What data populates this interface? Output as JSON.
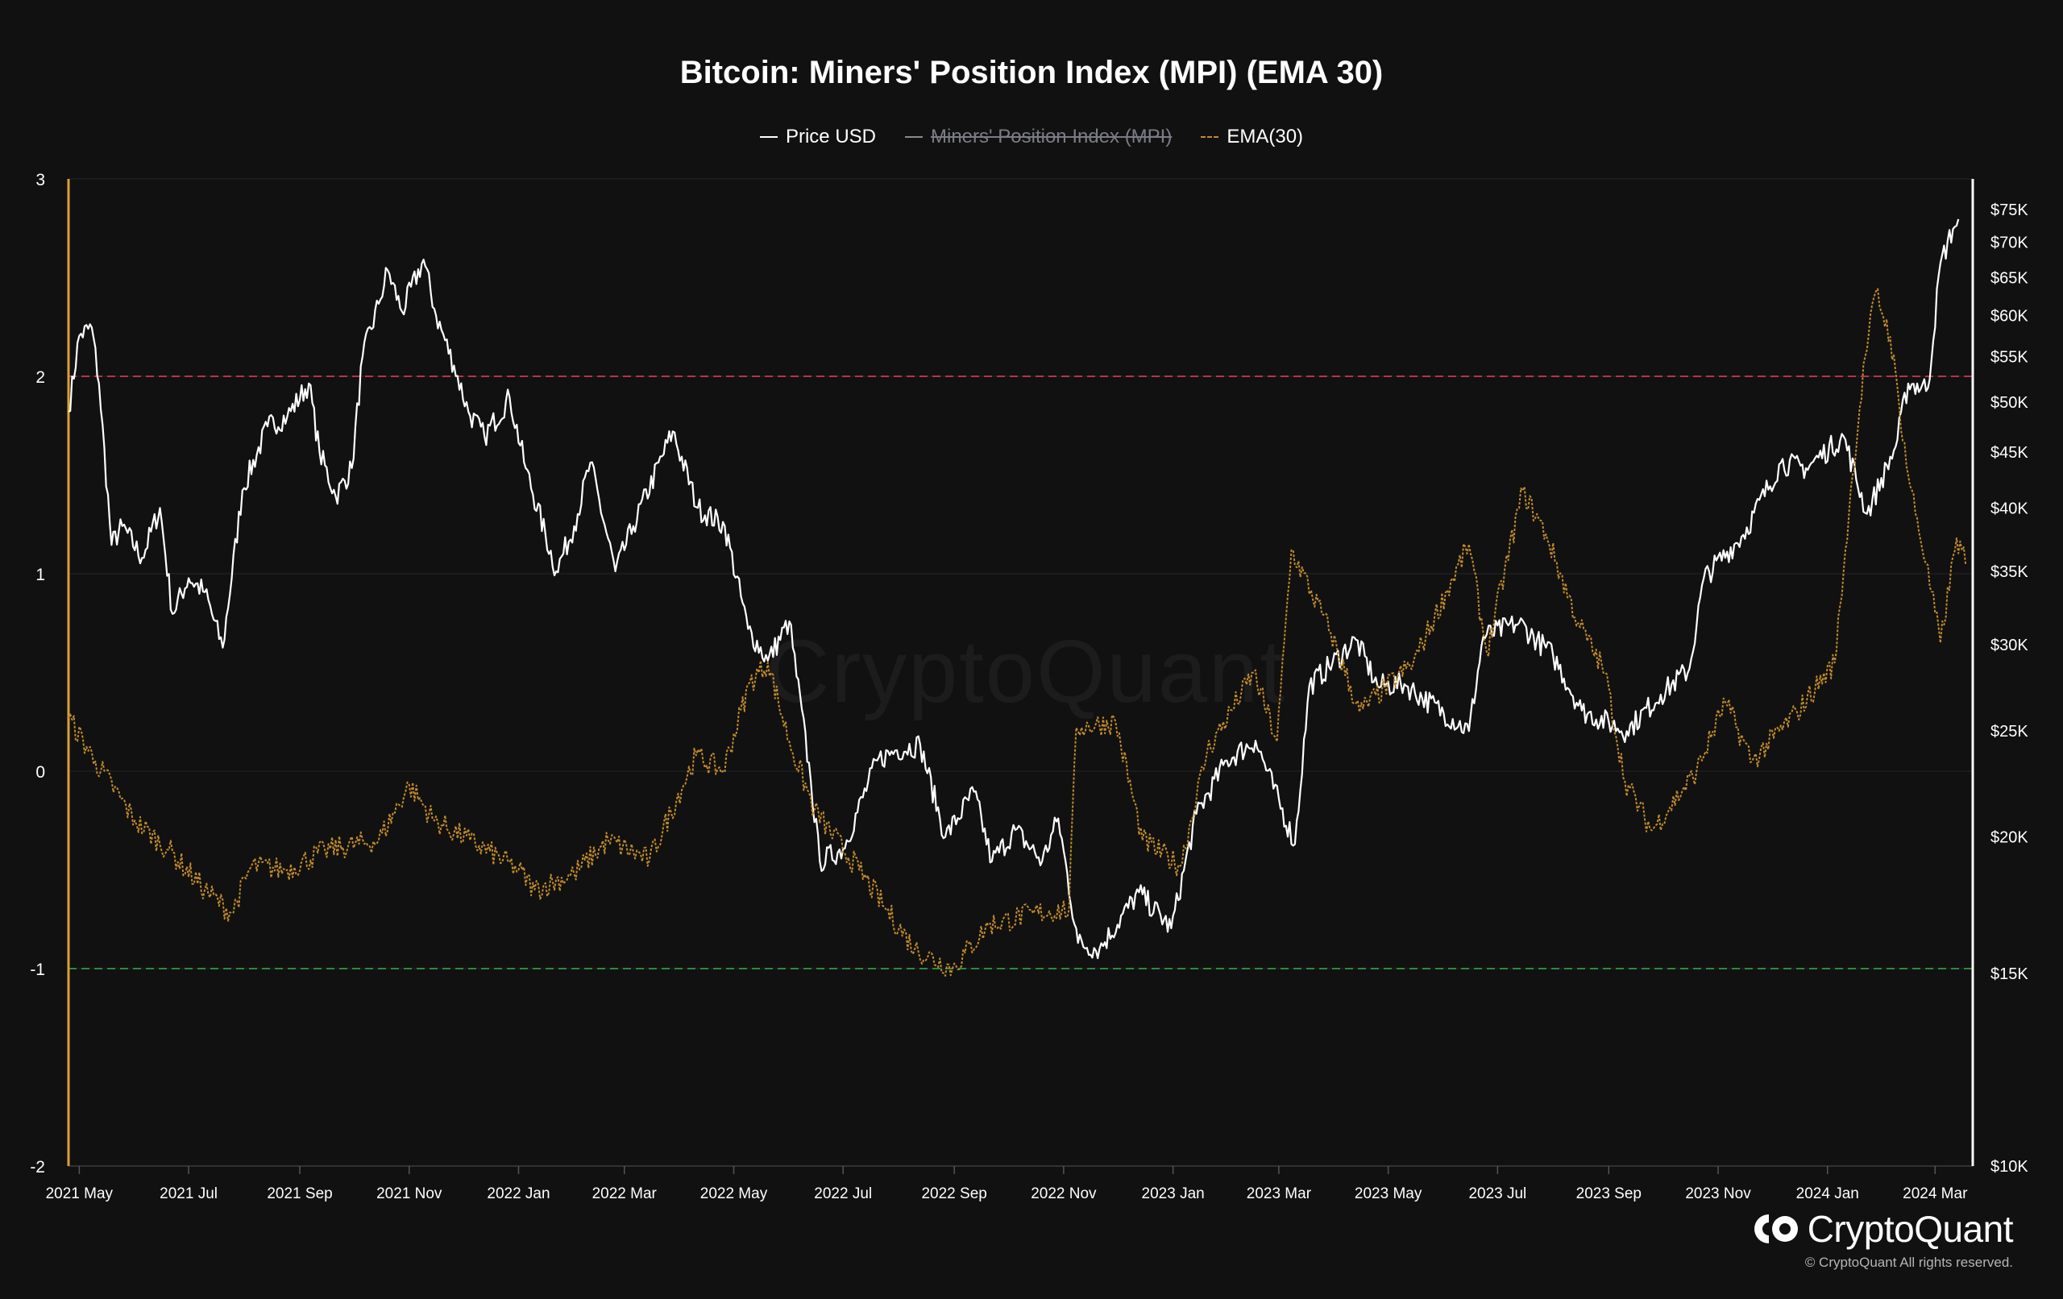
{
  "title": "Bitcoin: Miners' Position Index (MPI) (EMA 30)",
  "legend": {
    "price": "Price USD",
    "mpi": "Miners' Position Index (MPI)",
    "ema": "EMA(30)"
  },
  "watermark": "CryptoQuant",
  "logo": {
    "text": "CryptoQuant",
    "icon": "cryptoquant-logo-icon"
  },
  "copyright": "© CryptoQuant All rights reserved.",
  "colors": {
    "background": "#111111",
    "price": "#ffffff",
    "ema": "#c18a2a",
    "upper_threshold": "#b5344a",
    "lower_threshold": "#2f8a3a",
    "left_axis": "#d9a03a"
  },
  "chart_data": {
    "type": "line",
    "title": "Bitcoin: Miners' Position Index (MPI) (EMA 30)",
    "x_range": [
      "2021-04-25",
      "2024-03-22"
    ],
    "x_ticks": [
      {
        "date": "2021-05-01",
        "label": "2021 May"
      },
      {
        "date": "2021-07-01",
        "label": "2021 Jul"
      },
      {
        "date": "2021-09-01",
        "label": "2021 Sep"
      },
      {
        "date": "2021-11-01",
        "label": "2021 Nov"
      },
      {
        "date": "2022-01-01",
        "label": "2022 Jan"
      },
      {
        "date": "2022-03-01",
        "label": "2022 Mar"
      },
      {
        "date": "2022-05-01",
        "label": "2022 May"
      },
      {
        "date": "2022-07-01",
        "label": "2022 Jul"
      },
      {
        "date": "2022-09-01",
        "label": "2022 Sep"
      },
      {
        "date": "2022-11-01",
        "label": "2022 Nov"
      },
      {
        "date": "2023-01-01",
        "label": "2023 Jan"
      },
      {
        "date": "2023-03-01",
        "label": "2023 Mar"
      },
      {
        "date": "2023-05-01",
        "label": "2023 May"
      },
      {
        "date": "2023-07-01",
        "label": "2023 Jul"
      },
      {
        "date": "2023-09-01",
        "label": "2023 Sep"
      },
      {
        "date": "2023-11-01",
        "label": "2023 Nov"
      },
      {
        "date": "2024-01-01",
        "label": "2024 Jan"
      },
      {
        "date": "2024-03-01",
        "label": "2024 Mar"
      }
    ],
    "y_left": {
      "range": [
        -2,
        3
      ],
      "ticks": [
        {
          "value": 3,
          "label": "3"
        },
        {
          "value": 2,
          "label": "2"
        },
        {
          "value": 1,
          "label": "1"
        },
        {
          "value": 0,
          "label": "0"
        },
        {
          "value": -1,
          "label": "-1"
        },
        {
          "value": -2,
          "label": "-2"
        }
      ]
    },
    "y_right": {
      "scale": "log",
      "range": [
        10000,
        80000
      ],
      "ticks": [
        {
          "value": 10000,
          "label": "$10K"
        },
        {
          "value": 15000,
          "label": "$15K"
        },
        {
          "value": 20000,
          "label": "$20K"
        },
        {
          "value": 25000,
          "label": "$25K"
        },
        {
          "value": 30000,
          "label": "$30K"
        },
        {
          "value": 35000,
          "label": "$35K"
        },
        {
          "value": 40000,
          "label": "$40K"
        },
        {
          "value": 45000,
          "label": "$45K"
        },
        {
          "value": 50000,
          "label": "$50K"
        },
        {
          "value": 55000,
          "label": "$55K"
        },
        {
          "value": 60000,
          "label": "$60K"
        },
        {
          "value": 65000,
          "label": "$65K"
        },
        {
          "value": 70000,
          "label": "$70K"
        },
        {
          "value": 75000,
          "label": "$75K"
        }
      ]
    },
    "thresholds": [
      {
        "value": 2,
        "style": "dashed",
        "color": "#b5344a"
      },
      {
        "value": -1,
        "style": "dashed",
        "color": "#2f8a3a"
      }
    ],
    "legend_placement": "top-center",
    "grid": true,
    "series": [
      {
        "name": "Price USD",
        "axis": "right",
        "style": "solid",
        "points": [
          [
            "2021-04-25",
            49000
          ],
          [
            "2021-05-01",
            57500
          ],
          [
            "2021-05-08",
            58500
          ],
          [
            "2021-05-12",
            52000
          ],
          [
            "2021-05-19",
            37000
          ],
          [
            "2021-05-25",
            38500
          ],
          [
            "2021-06-05",
            36000
          ],
          [
            "2021-06-15",
            40000
          ],
          [
            "2021-06-22",
            32000
          ],
          [
            "2021-07-01",
            34500
          ],
          [
            "2021-07-10",
            33500
          ],
          [
            "2021-07-20",
            29800
          ],
          [
            "2021-07-31",
            41500
          ],
          [
            "2021-08-14",
            47500
          ],
          [
            "2021-08-25",
            48500
          ],
          [
            "2021-09-06",
            52000
          ],
          [
            "2021-09-12",
            45000
          ],
          [
            "2021-09-21",
            41000
          ],
          [
            "2021-09-30",
            43500
          ],
          [
            "2021-10-06",
            55000
          ],
          [
            "2021-10-15",
            61500
          ],
          [
            "2021-10-20",
            66000
          ],
          [
            "2021-10-28",
            60500
          ],
          [
            "2021-11-09",
            67500
          ],
          [
            "2021-11-16",
            60000
          ],
          [
            "2021-11-26",
            54000
          ],
          [
            "2021-12-04",
            49000
          ],
          [
            "2021-12-13",
            46500
          ],
          [
            "2021-12-27",
            50500
          ],
          [
            "2022-01-05",
            43500
          ],
          [
            "2022-01-22",
            35000
          ],
          [
            "2022-02-01",
            38500
          ],
          [
            "2022-02-10",
            44000
          ],
          [
            "2022-02-24",
            35000
          ],
          [
            "2022-03-06",
            38500
          ],
          [
            "2022-03-28",
            47000
          ],
          [
            "2022-04-11",
            40000
          ],
          [
            "2022-04-26",
            38500
          ],
          [
            "2022-05-09",
            31000
          ],
          [
            "2022-05-20",
            29000
          ],
          [
            "2022-06-01",
            31500
          ],
          [
            "2022-06-13",
            22500
          ],
          [
            "2022-06-18",
            19000
          ],
          [
            "2022-07-01",
            19500
          ],
          [
            "2022-07-20",
            23500
          ],
          [
            "2022-07-30",
            24000
          ],
          [
            "2022-08-13",
            24300
          ],
          [
            "2022-08-27",
            20000
          ],
          [
            "2022-09-12",
            22000
          ],
          [
            "2022-09-22",
            19000
          ],
          [
            "2022-10-05",
            20300
          ],
          [
            "2022-10-20",
            19000
          ],
          [
            "2022-10-29",
            20800
          ],
          [
            "2022-11-09",
            16000
          ],
          [
            "2022-11-21",
            15800
          ],
          [
            "2022-12-13",
            17800
          ],
          [
            "2022-12-31",
            16500
          ],
          [
            "2023-01-14",
            21000
          ],
          [
            "2023-01-31",
            23500
          ],
          [
            "2023-02-16",
            24500
          ],
          [
            "2023-03-10",
            19700
          ],
          [
            "2023-03-18",
            27500
          ],
          [
            "2023-04-13",
            30300
          ],
          [
            "2023-04-25",
            27500
          ],
          [
            "2023-05-10",
            27600
          ],
          [
            "2023-06-15",
            25000
          ],
          [
            "2023-06-23",
            30500
          ],
          [
            "2023-07-13",
            31400
          ],
          [
            "2023-08-01",
            29300
          ],
          [
            "2023-08-17",
            26100
          ],
          [
            "2023-09-11",
            25000
          ],
          [
            "2023-09-30",
            27000
          ],
          [
            "2023-10-16",
            28500
          ],
          [
            "2023-10-24",
            34500
          ],
          [
            "2023-11-15",
            37800
          ],
          [
            "2023-12-06",
            44000
          ],
          [
            "2023-12-20",
            43500
          ],
          [
            "2024-01-10",
            46500
          ],
          [
            "2024-01-23",
            39500
          ],
          [
            "2024-02-08",
            45500
          ],
          [
            "2024-02-15",
            52000
          ],
          [
            "2024-02-26",
            51500
          ],
          [
            "2024-03-04",
            67000
          ],
          [
            "2024-03-11",
            72000
          ],
          [
            "2024-03-14",
            73500
          ]
        ]
      },
      {
        "name": "EMA(30)",
        "axis": "left",
        "style": "dashed",
        "points": [
          [
            "2021-04-25",
            0.27
          ],
          [
            "2021-05-10",
            0.05
          ],
          [
            "2021-06-01",
            -0.25
          ],
          [
            "2021-06-20",
            -0.4
          ],
          [
            "2021-07-10",
            -0.6
          ],
          [
            "2021-07-25",
            -0.72
          ],
          [
            "2021-08-05",
            -0.48
          ],
          [
            "2021-08-25",
            -0.5
          ],
          [
            "2021-09-15",
            -0.4
          ],
          [
            "2021-10-15",
            -0.35
          ],
          [
            "2021-11-01",
            -0.07
          ],
          [
            "2021-11-15",
            -0.25
          ],
          [
            "2021-12-05",
            -0.35
          ],
          [
            "2022-01-01",
            -0.5
          ],
          [
            "2022-01-10",
            -0.6
          ],
          [
            "2022-02-01",
            -0.52
          ],
          [
            "2022-02-20",
            -0.35
          ],
          [
            "2022-03-15",
            -0.45
          ],
          [
            "2022-04-10",
            0.08
          ],
          [
            "2022-04-25",
            0.0
          ],
          [
            "2022-05-10",
            0.45
          ],
          [
            "2022-05-20",
            0.55
          ],
          [
            "2022-06-01",
            0.15
          ],
          [
            "2022-06-15",
            -0.2
          ],
          [
            "2022-07-10",
            -0.5
          ],
          [
            "2022-07-25",
            -0.7
          ],
          [
            "2022-08-10",
            -0.9
          ],
          [
            "2022-08-31",
            -1.0
          ],
          [
            "2022-09-20",
            -0.78
          ],
          [
            "2022-10-15",
            -0.72
          ],
          [
            "2022-11-04",
            -0.7
          ],
          [
            "2022-11-08",
            0.22
          ],
          [
            "2022-11-30",
            0.25
          ],
          [
            "2022-12-15",
            -0.35
          ],
          [
            "2023-01-05",
            -0.48
          ],
          [
            "2023-01-20",
            0.1
          ],
          [
            "2023-02-15",
            0.5
          ],
          [
            "2023-02-28",
            0.15
          ],
          [
            "2023-03-08",
            1.12
          ],
          [
            "2023-03-30",
            0.7
          ],
          [
            "2023-04-15",
            0.3
          ],
          [
            "2023-05-15",
            0.55
          ],
          [
            "2023-06-15",
            1.15
          ],
          [
            "2023-06-25",
            0.6
          ],
          [
            "2023-07-15",
            1.42
          ],
          [
            "2023-07-28",
            1.2
          ],
          [
            "2023-08-15",
            0.75
          ],
          [
            "2023-08-30",
            0.5
          ],
          [
            "2023-09-10",
            -0.05
          ],
          [
            "2023-09-25",
            -0.3
          ],
          [
            "2023-10-20",
            0.0
          ],
          [
            "2023-11-05",
            0.35
          ],
          [
            "2023-11-20",
            0.05
          ],
          [
            "2023-12-15",
            0.3
          ],
          [
            "2024-01-05",
            0.55
          ],
          [
            "2024-01-15",
            1.5
          ],
          [
            "2024-01-22",
            2.1
          ],
          [
            "2024-01-28",
            2.43
          ],
          [
            "2024-02-05",
            2.2
          ],
          [
            "2024-02-15",
            1.5
          ],
          [
            "2024-02-25",
            1.05
          ],
          [
            "2024-03-04",
            0.65
          ],
          [
            "2024-03-13",
            1.18
          ],
          [
            "2024-03-18",
            1.05
          ]
        ]
      }
    ]
  }
}
